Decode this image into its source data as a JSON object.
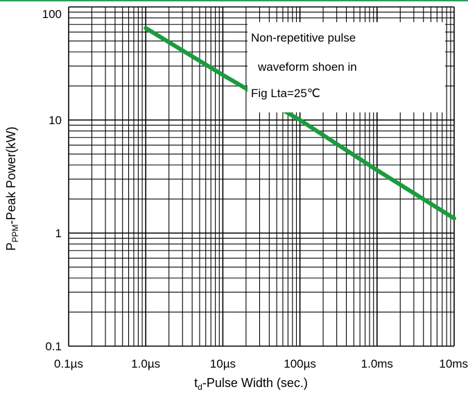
{
  "chart_data": {
    "type": "line",
    "title": "",
    "x_scale": "log",
    "y_scale": "log",
    "xlim": [
      1e-07,
      0.01
    ],
    "ylim": [
      0.1,
      100
    ],
    "x_ticks": [
      {
        "value": 1e-07,
        "label": "0.1µs"
      },
      {
        "value": 1e-06,
        "label": "1.0µs"
      },
      {
        "value": 1e-05,
        "label": "10µs"
      },
      {
        "value": 0.0001,
        "label": "100µs"
      },
      {
        "value": 0.001,
        "label": "1.0ms"
      },
      {
        "value": 0.01,
        "label": "10ms"
      }
    ],
    "y_ticks": [
      {
        "value": 0.1,
        "label": "0.1"
      },
      {
        "value": 1,
        "label": "1"
      },
      {
        "value": 10,
        "label": "10"
      },
      {
        "value": 100,
        "label": "100"
      }
    ],
    "xlabel": {
      "prefix": "t",
      "sub": "d",
      "rest": "-Pulse Width (sec.)"
    },
    "ylabel": {
      "prefix": "P",
      "sub": "PPM",
      "rest": "-Peak Power(kW)"
    },
    "grid": true,
    "series": [
      {
        "color": "#1a9c3e",
        "x": [
          1e-06,
          1e-05,
          0.0001,
          0.001,
          0.01
        ],
        "y": [
          65,
          25,
          10,
          3.6,
          1.35
        ]
      }
    ],
    "annotation": {
      "lines": [
        "Non-repetitive pulse",
        "waveform shoen in",
        "Fig Lta=25℃"
      ]
    },
    "colors": {
      "grid": "#000000",
      "series": "#1a9c3e",
      "top_border": "#2e9e5b"
    }
  }
}
